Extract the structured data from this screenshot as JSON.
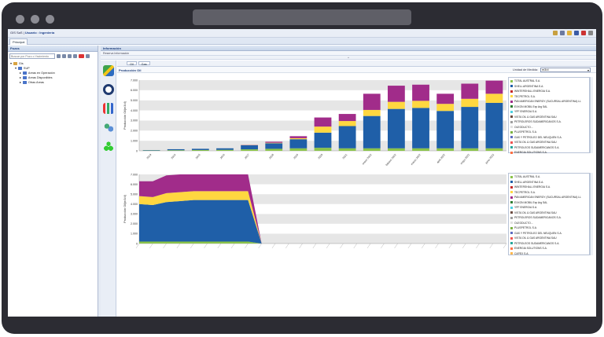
{
  "app": {
    "title": "GIS SaS",
    "user": "Usuario : Ingeniería",
    "main_tab": "Principal"
  },
  "left_panel": {
    "title": "Pozos",
    "search_placeholder": "Buscar por Pozo o Yacimiento",
    "tree": [
      {
        "label": "Gis",
        "level": 0
      },
      {
        "label": "SUP",
        "level": 1
      },
      {
        "label": "Areas en Operación",
        "level": 2
      },
      {
        "label": "Areas Disponibles",
        "level": 2
      },
      {
        "label": "Otras Areas",
        "level": 2
      }
    ]
  },
  "right_panel": {
    "title": "Información",
    "subtitle": "Reserva Información",
    "subtabs": [
      "Oil",
      "Gas"
    ],
    "section_title": "Producción Oil",
    "unit_label": "Unidad de Medida:",
    "unit_value": "m3/d"
  },
  "colors": {
    "total_austral": "#8bc34a",
    "shell": "#1f5fa8",
    "wintershall": "#c62828",
    "tecpetrol": "#ffd740",
    "pan_american": "#a12c8a",
    "exxon": "#2e7d32",
    "capex": "#ff9800",
    "accent": "#1c3d7a"
  },
  "legend_items": [
    {
      "label": "TOTAL AUSTRAL S.A.",
      "color": "#8bc34a"
    },
    {
      "label": "SHELL ARGENTINA S.A.",
      "color": "#1f5fa8"
    },
    {
      "label": "WINTERSHALL ENERGIA S.A.",
      "color": "#c62828"
    },
    {
      "label": "TECPETROL S.A.",
      "color": "#ffd740"
    },
    {
      "label": "PAN AMERICAN ENERGY (SUCURSAL ARGENTINA) LL",
      "color": "#a12c8a"
    },
    {
      "label": "EXXON MOBIL Exp Arg SAL",
      "color": "#2e7d32"
    },
    {
      "label": "YPF ENERGIA S.A.",
      "color": "#4dd0e1"
    },
    {
      "label": "VISTA OIL & GAS ARGENTINA SAU",
      "color": "#6d4c41"
    },
    {
      "label": "PETROLEROS SUDAMERICANOS S.A.",
      "color": "#9e9e9e"
    },
    {
      "label": "OLEODUCTO...",
      "color": "#e0e0e0"
    },
    {
      "label": "PLUSPETROL S.A.",
      "color": "#7cb342"
    },
    {
      "label": "GAS Y PETROLEO DEL NEUQUEN S.A.",
      "color": "#5c6bc0"
    },
    {
      "label": "VISTA OIL & GAS ARGENTINA SAU",
      "color": "#ef5350"
    },
    {
      "label": "PETROLEOS SUDAMERICANOS S.A.",
      "color": "#26a69a"
    },
    {
      "label": "ENERGIA SOLUTIONS S.A.",
      "color": "#ff7043"
    },
    {
      "label": "CAPEX S.A.",
      "color": "#ffb74d"
    }
  ],
  "chart_data": [
    {
      "type": "bar",
      "stacked": true,
      "ylabel": "Producción Oil(m3/d)",
      "ylim": [
        0,
        7000
      ],
      "yticks": [
        0,
        1000,
        2000,
        3000,
        4000,
        5000,
        6000,
        7000
      ],
      "categories": [
        "2013",
        "2014",
        "2015",
        "2016",
        "2017",
        "2018",
        "2019",
        "2020",
        "2021",
        "enero 2022",
        "febrero 2022",
        "marzo 2022",
        "abril 2022",
        "mayo 2022",
        "junio 2022"
      ],
      "series": [
        {
          "name": "TOTAL AUSTRAL S.A.",
          "values": [
            30,
            60,
            80,
            100,
            150,
            200,
            250,
            300,
            250,
            250,
            250,
            250,
            250,
            250,
            250
          ]
        },
        {
          "name": "SHELL ARGENTINA S.A.",
          "values": [
            40,
            100,
            120,
            150,
            400,
            550,
            900,
            1500,
            2200,
            3200,
            3900,
            4000,
            3700,
            4100,
            4500
          ]
        },
        {
          "name": "TECPETROL S.A.",
          "values": [
            0,
            0,
            0,
            0,
            20,
            50,
            100,
            600,
            500,
            600,
            700,
            700,
            700,
            800,
            900
          ]
        },
        {
          "name": "PAN AMERICAN ENERGY (SUCURSAL ARGENTINA) LL",
          "values": [
            0,
            0,
            0,
            0,
            20,
            100,
            200,
            900,
            700,
            1600,
            1600,
            1600,
            1000,
            1500,
            1300
          ]
        }
      ]
    },
    {
      "type": "area",
      "stacked": true,
      "ylabel": "Producción Oil(m3/d)",
      "ylim": [
        0,
        7000
      ],
      "yticks": [
        0,
        1000,
        2000,
        3000,
        4000,
        5000,
        6000,
        7000
      ],
      "points": 28,
      "series": [
        {
          "name": "TOTAL AUSTRAL S.A.",
          "values": [
            200,
            200,
            200,
            200,
            200,
            200,
            200,
            200,
            200,
            0,
            0,
            0,
            0,
            0,
            0,
            0,
            0,
            0,
            0,
            0,
            0,
            0,
            0,
            0,
            0,
            0,
            0,
            0
          ]
        },
        {
          "name": "SHELL ARGENTINA S.A.",
          "values": [
            3800,
            3700,
            4000,
            4100,
            4200,
            4200,
            4200,
            4200,
            4200,
            0,
            0,
            0,
            0,
            0,
            0,
            0,
            0,
            0,
            0,
            0,
            0,
            0,
            0,
            0,
            0,
            0,
            0,
            0
          ]
        },
        {
          "name": "TECPETROL S.A.",
          "values": [
            800,
            800,
            900,
            900,
            900,
            900,
            900,
            900,
            900,
            0,
            0,
            0,
            0,
            0,
            0,
            0,
            0,
            0,
            0,
            0,
            0,
            0,
            0,
            0,
            0,
            0,
            0,
            0
          ]
        },
        {
          "name": "PAN AMERICAN ENERGY (SUCURSAL ARGENTINA) LL",
          "values": [
            1500,
            1600,
            1800,
            1800,
            1700,
            1700,
            1700,
            1700,
            1700,
            0,
            0,
            0,
            0,
            0,
            0,
            0,
            0,
            0,
            0,
            0,
            0,
            0,
            0,
            0,
            0,
            0,
            0,
            0
          ]
        }
      ]
    }
  ]
}
